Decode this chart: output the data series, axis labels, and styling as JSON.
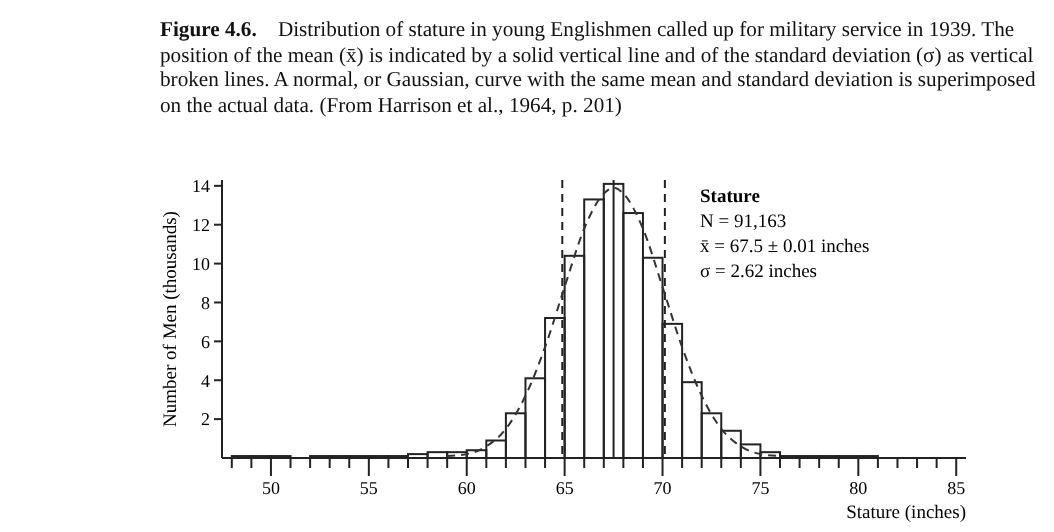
{
  "chart_data": {
    "type": "histogram",
    "title": "Figure 4.6.",
    "subtitle": "Distribution of stature in young Englishmen called up for military service in 1939. The position of the mean (x̄) is indicated by a solid vertical line and of the standard deviation (σ) as vertical broken lines. A normal, or Gaussian, curve with the same mean and standard deviation is superimposed on the actual data.  (From Harrison et al., 1964, p. 201)",
    "xlabel": "Stature (inches)",
    "ylabel": "Number of Men (thousands)",
    "bins": [
      48,
      49,
      50,
      51,
      52,
      53,
      54,
      55,
      56,
      57,
      58,
      59,
      60,
      61,
      62,
      63,
      64,
      65,
      66,
      67,
      68,
      69,
      70,
      71,
      72,
      73,
      74,
      75,
      76,
      77,
      78,
      79,
      80,
      81,
      82,
      83
    ],
    "values": [
      0.1,
      0.1,
      0.1,
      0,
      0.1,
      0.1,
      0.1,
      0.1,
      0.1,
      0.2,
      0.3,
      0.3,
      0.4,
      0.9,
      2.3,
      4.1,
      7.2,
      10.4,
      13.3,
      14.1,
      12.6,
      10.3,
      6.9,
      3.9,
      2.3,
      1.4,
      0.7,
      0.3,
      0.1,
      0.1,
      0.1,
      0.1,
      0.1,
      0,
      0
    ],
    "color": "#222222",
    "series": [
      {
        "type": "line",
        "line_style": "dashed",
        "color": "#333333",
        "x": [
          59,
          60,
          61,
          62,
          63,
          64,
          65,
          66,
          67,
          67.5,
          68,
          69,
          70,
          71,
          72,
          73,
          74,
          75,
          76
        ],
        "values": [
          0.1,
          0.2,
          0.6,
          1.5,
          3.2,
          5.7,
          8.8,
          11.8,
          13.6,
          13.9,
          13.6,
          11.8,
          8.8,
          5.7,
          3.2,
          1.5,
          0.6,
          0.2,
          0.1
        ]
      }
    ],
    "xlim": [
      47.5,
      85.5
    ],
    "ylim": [
      0,
      14.3
    ],
    "xticks": [
      {
        "value": 48,
        "label": null
      },
      {
        "value": 49,
        "label": null
      },
      50,
      {
        "value": 51,
        "label": null
      },
      {
        "value": 52,
        "label": null
      },
      {
        "value": 53,
        "label": null
      },
      {
        "value": 54,
        "label": null
      },
      55,
      {
        "value": 56,
        "label": null
      },
      {
        "value": 57,
        "label": null
      },
      {
        "value": 58,
        "label": null
      },
      {
        "value": 59,
        "label": null
      },
      60,
      {
        "value": 61,
        "label": null
      },
      {
        "value": 62,
        "label": null
      },
      {
        "value": 63,
        "label": null
      },
      {
        "value": 64,
        "label": null
      },
      65,
      {
        "value": 66,
        "label": null
      },
      {
        "value": 67,
        "label": null
      },
      {
        "value": 68,
        "label": null
      },
      {
        "value": 69,
        "label": null
      },
      70,
      {
        "value": 71,
        "label": null
      },
      {
        "value": 72,
        "label": null
      },
      {
        "value": 73,
        "label": null
      },
      {
        "value": 74,
        "label": null
      },
      75,
      {
        "value": 76,
        "label": null
      },
      {
        "value": 77,
        "label": null
      },
      {
        "value": 78,
        "label": null
      },
      {
        "value": 79,
        "label": null
      },
      80,
      {
        "value": 81,
        "label": null
      },
      {
        "value": 82,
        "label": null
      },
      {
        "value": 83,
        "label": null
      },
      {
        "value": 84,
        "label": null
      },
      85
    ],
    "yticks": [
      2,
      4,
      6,
      8,
      10,
      12,
      14
    ],
    "ref_lines": [
      {
        "axis": "x",
        "value": 67.5,
        "line_style": "solid",
        "color": "#222222"
      },
      {
        "axis": "x",
        "value": 64.88,
        "line_style": "dashed",
        "color": "#222222"
      },
      {
        "axis": "x",
        "value": 70.12,
        "line_style": "dashed",
        "color": "#222222"
      }
    ],
    "annotations": [
      "Stature",
      "N = 91,163",
      "x̄ = 67.5 ± 0.01 inches",
      "σ = 2.62 inches"
    ],
    "grid": false
  }
}
